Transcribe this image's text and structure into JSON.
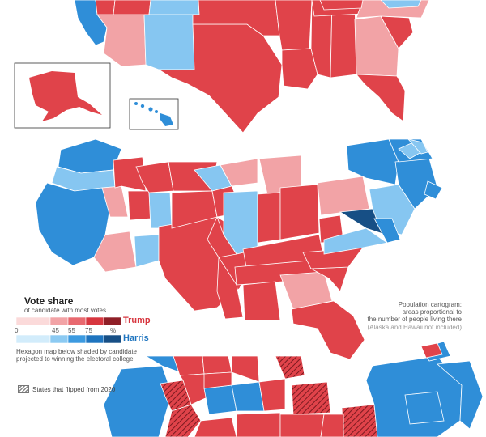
{
  "legend": {
    "title": "Vote share",
    "subtitle": "of candidate with most votes",
    "trump_label": "Trump",
    "harris_label": "Harris",
    "tick_labels": [
      "0",
      "45",
      "55",
      "75",
      "%"
    ],
    "trump_colors": [
      "#fbdada",
      "#f2a3a6",
      "#e8696f",
      "#d7363f",
      "#8f1f27"
    ],
    "harris_colors": [
      "#d2ecfb",
      "#8ccaf2",
      "#3c9ae0",
      "#1e74bf",
      "#174f85"
    ]
  },
  "notes": {
    "cartogram_line1": "Population cartogram:",
    "cartogram_line2": "areas proportional to",
    "cartogram_line3": "the number of people living there",
    "cartogram_line4": "(Alaska and Hawaii not included)",
    "hex_line1": "Hexagon map below shaded by candidate",
    "hex_line2": "projected to winning the electoral college",
    "flipped": "States that flipped from 2020"
  },
  "colors": {
    "trump_strong": "#e0434a",
    "trump_light": "#f2a3a6",
    "harris_strong": "#2f8ed8",
    "harris_light": "#86c6f1",
    "harris_dark": "#174f85",
    "border": "#ffffff",
    "hatch": "#7a1a20"
  }
}
